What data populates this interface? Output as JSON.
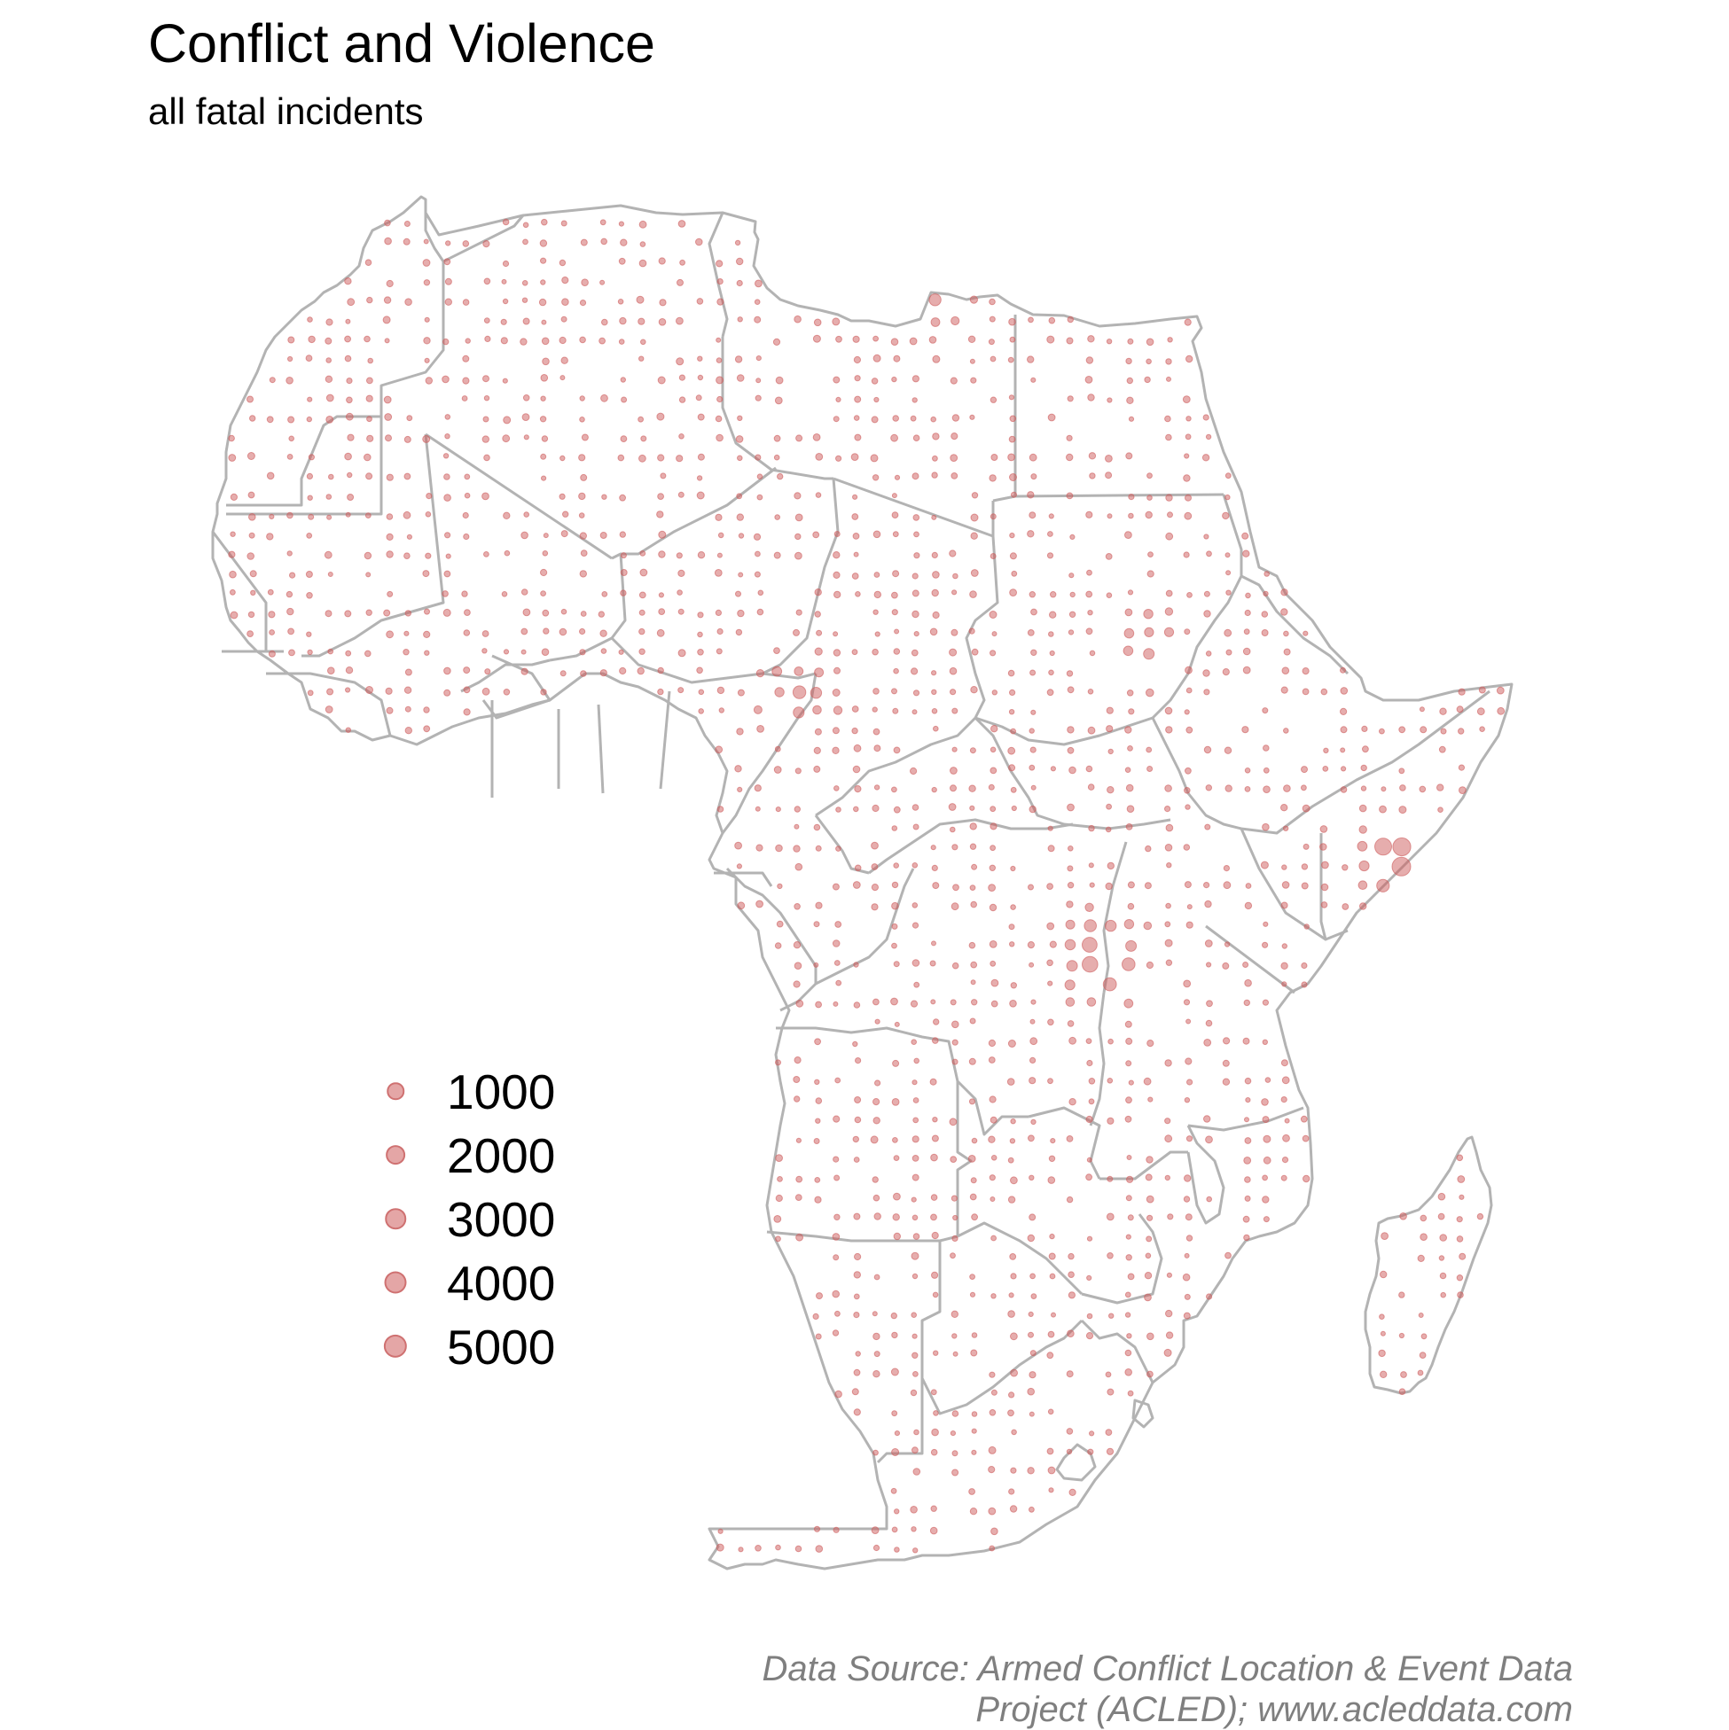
{
  "title": "Conflict and Violence",
  "subtitle": "all fatal incidents",
  "legend": {
    "entries": [
      {
        "label": "1000",
        "value": 1000
      },
      {
        "label": "2000",
        "value": 2000
      },
      {
        "label": "3000",
        "value": 3000
      },
      {
        "label": "4000",
        "value": 4000
      },
      {
        "label": "5000",
        "value": 5000
      }
    ]
  },
  "caption": {
    "line1": "Data Source: Armed Conflict Location & Event Data",
    "line2": "Project (ACLED); www.acleddata.com"
  },
  "colors": {
    "point_fill": "#cd5c5c",
    "border": "#b3b3b3",
    "caption": "#7f7f7f"
  }
}
